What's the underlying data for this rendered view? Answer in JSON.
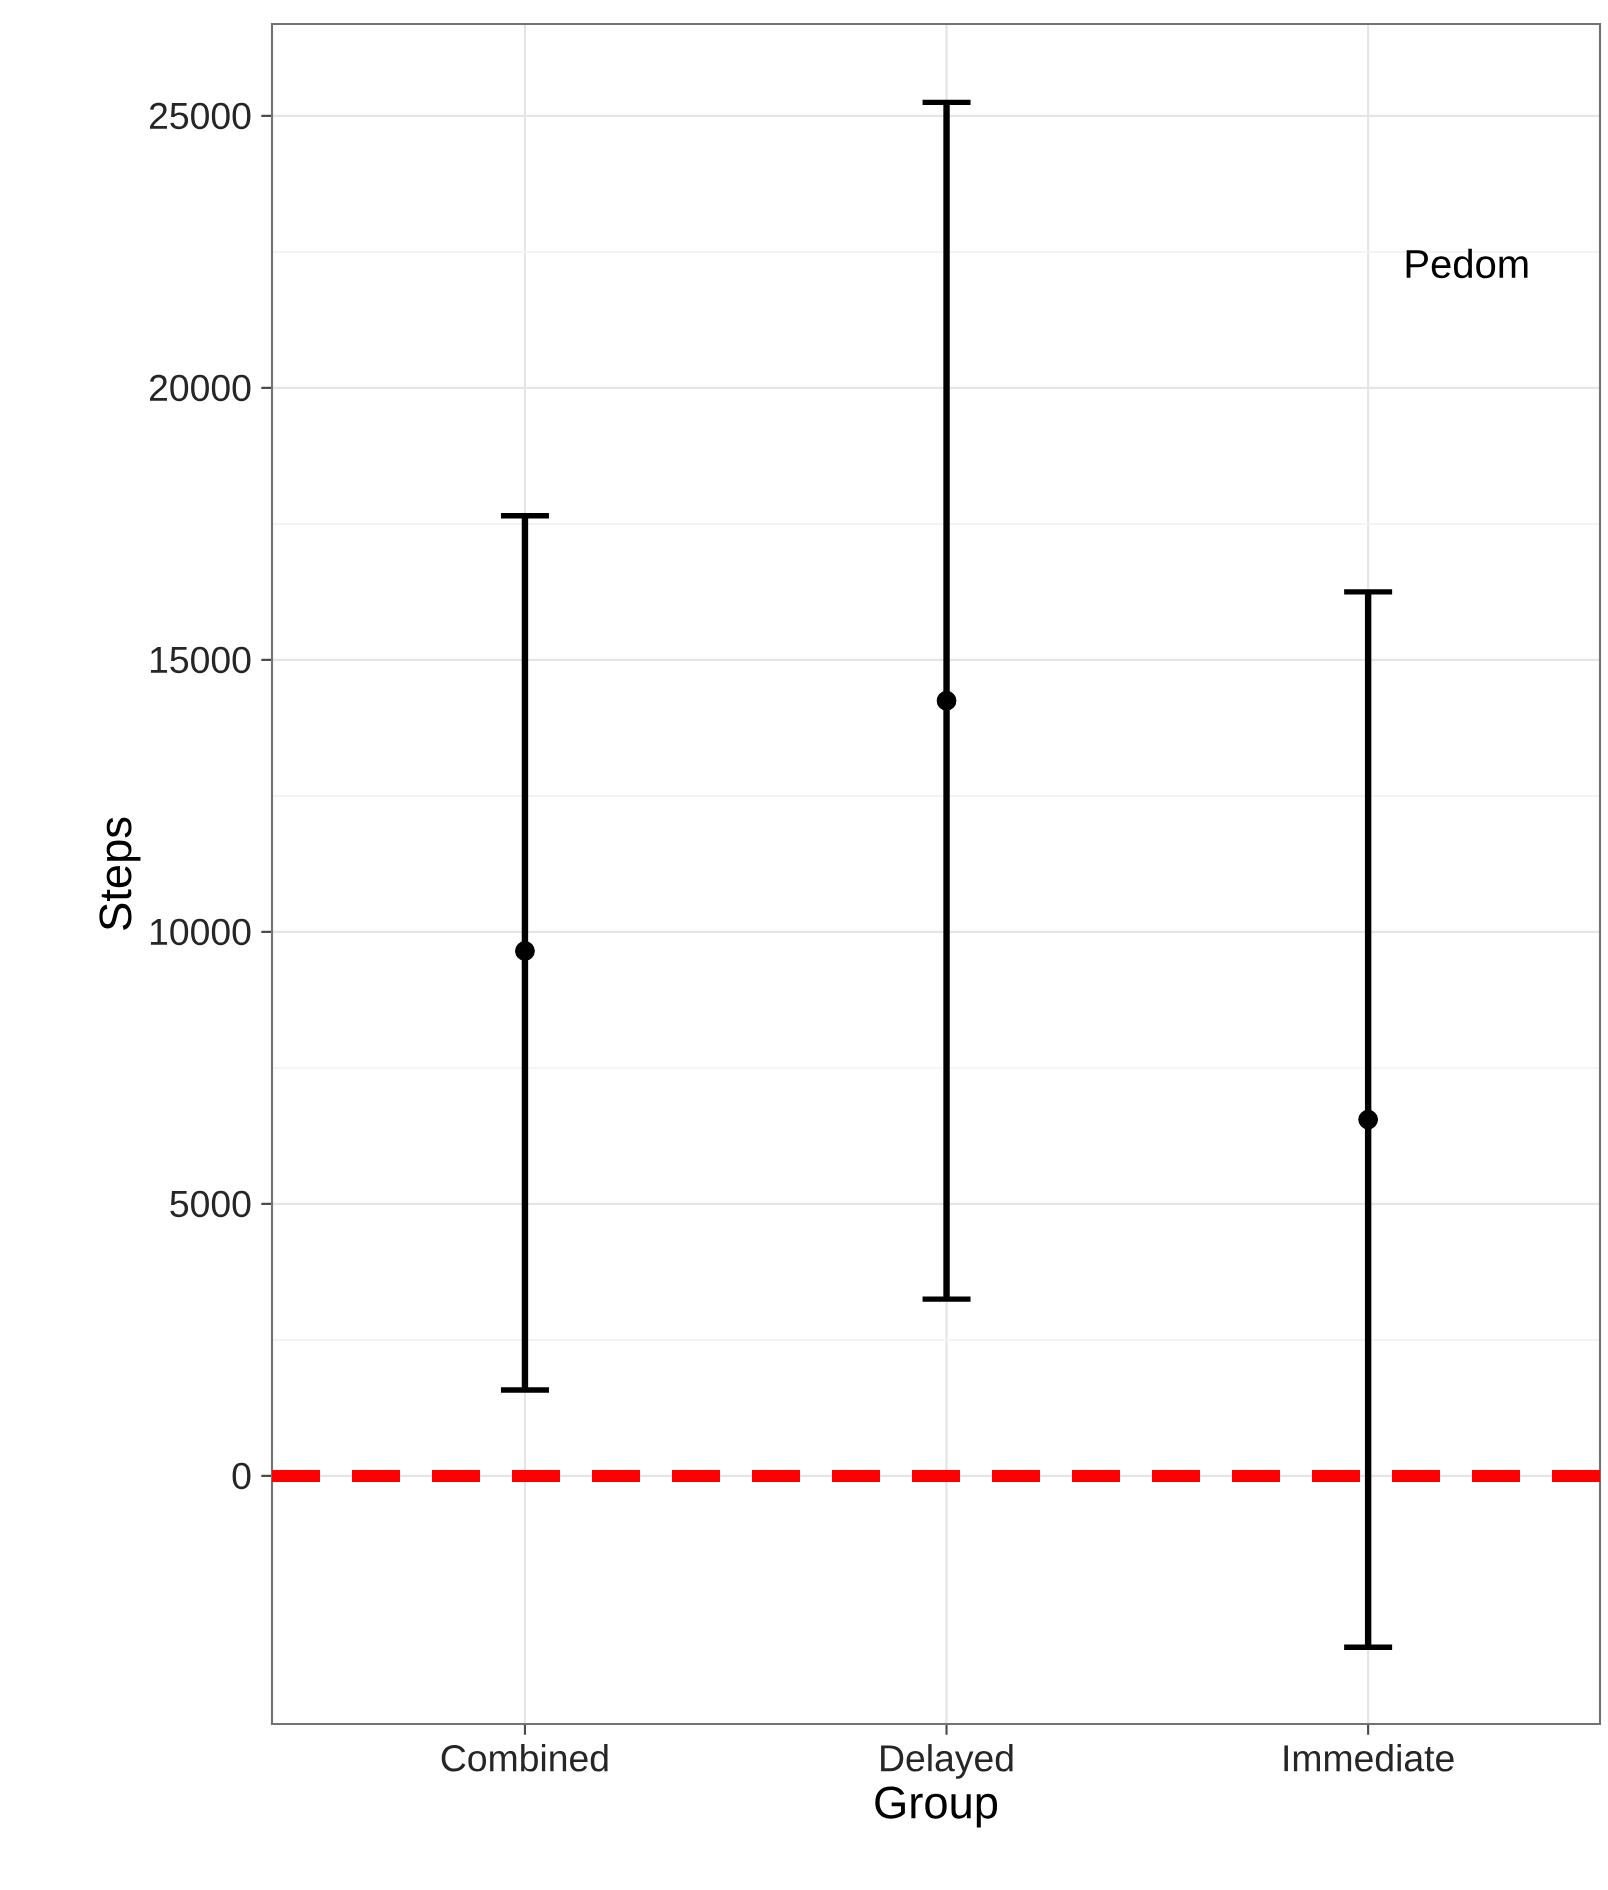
{
  "chart_data": {
    "type": "scatter",
    "xlabel": "Group",
    "ylabel": "Steps",
    "categories": [
      "Combined",
      "Delayed",
      "Immediate"
    ],
    "values": [
      9650,
      14250,
      6550
    ],
    "errors": [
      [
        1580,
        17650
      ],
      [
        3250,
        25250
      ],
      [
        -3150,
        16250
      ]
    ],
    "color": "#000000",
    "marker": "circle",
    "ylim": [
      -4560,
      26690
    ],
    "yticks": [
      0,
      5000,
      10000,
      15000,
      20000,
      25000
    ],
    "grid": true,
    "ref_lines": [
      {
        "axis": "y",
        "value": 0,
        "color": "#ff0000",
        "line_style": "dashed"
      }
    ],
    "annotations": [
      "Pedom"
    ]
  }
}
